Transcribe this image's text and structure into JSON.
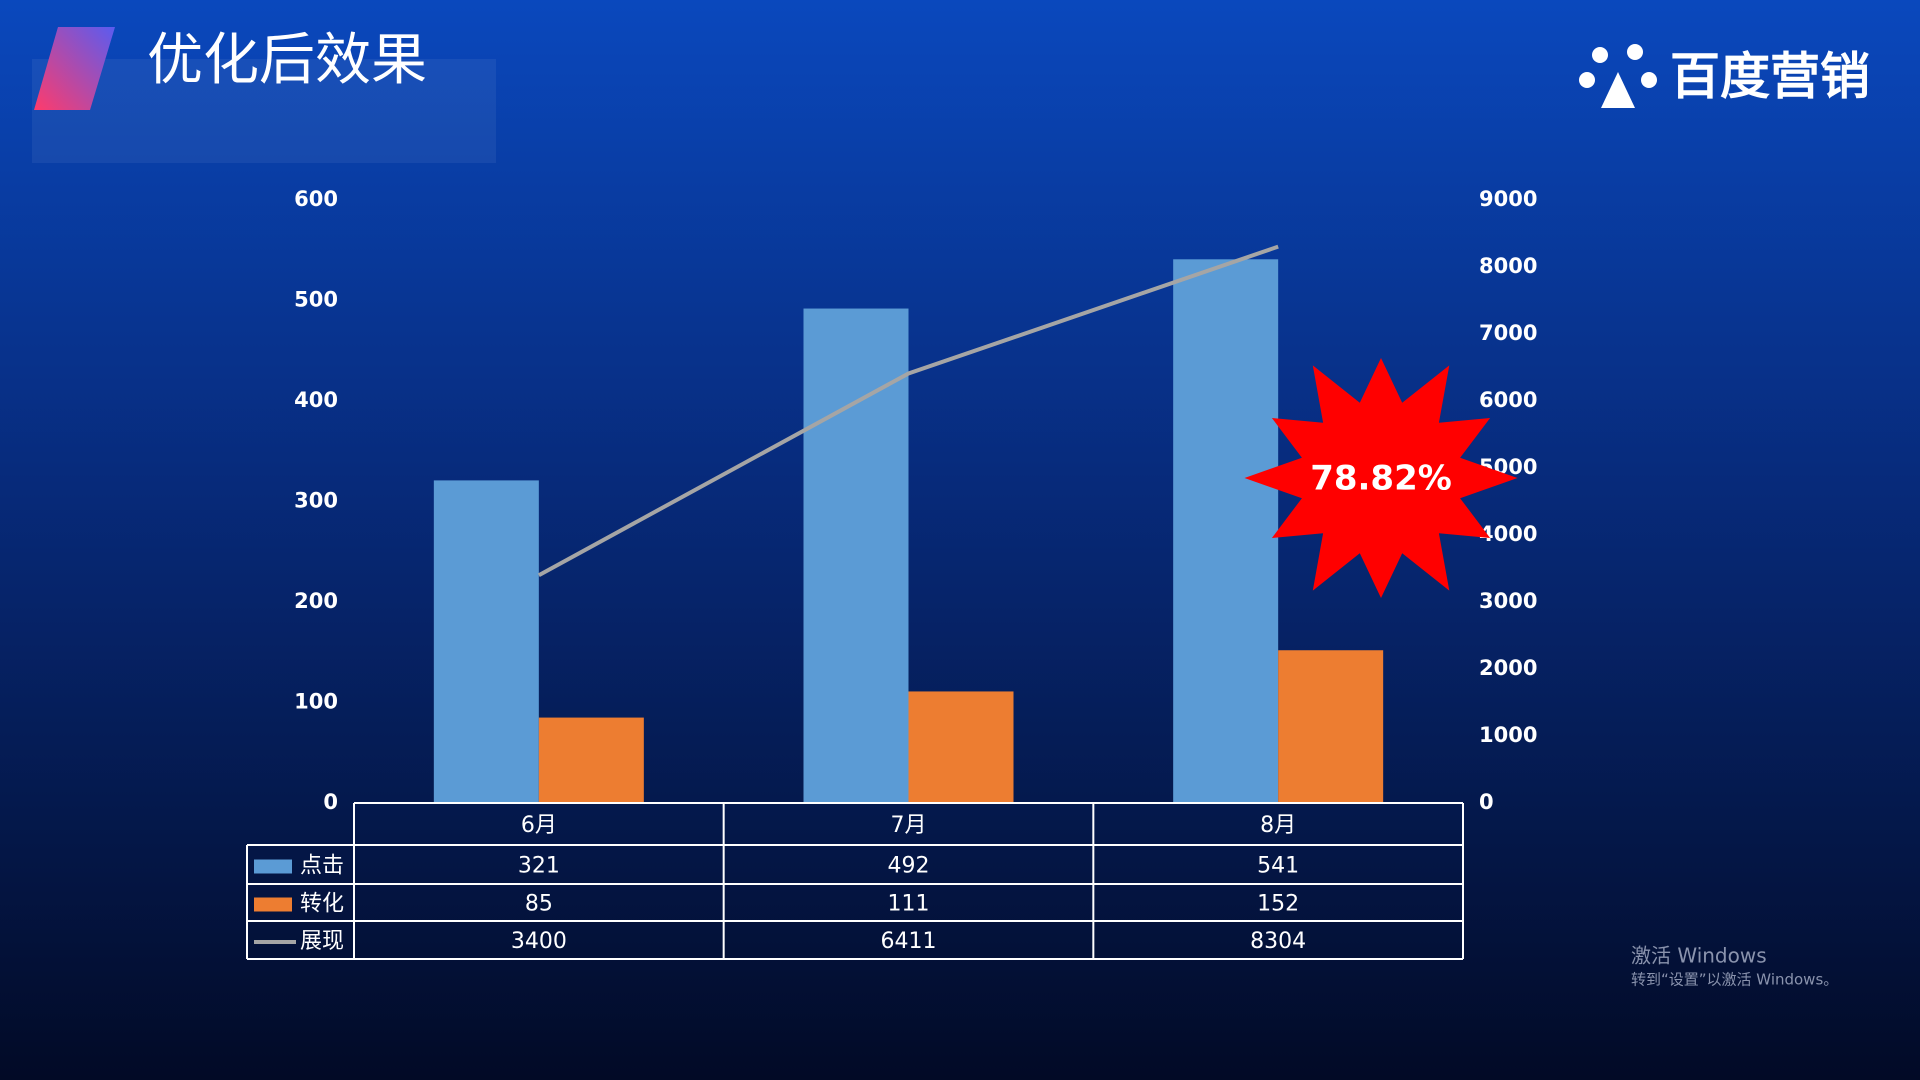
{
  "logo": "百度营销",
  "watermark": {
    "title": "激活 Windows",
    "text": "转到“设置”以激活 Windows。"
  },
  "chart_data": {
    "type": "bar",
    "title": "优化后效果",
    "categories": [
      "6月",
      "7月",
      "8月"
    ],
    "series": [
      {
        "name": "点击",
        "color": "#5b9bd5",
        "values": [
          321,
          492,
          541
        ]
      },
      {
        "name": "转化",
        "color": "#ed7d31",
        "values": [
          85,
          111,
          152
        ]
      },
      {
        "name": "展现",
        "color": "#a5a5a5",
        "type": "line",
        "axis": "y2",
        "values": [
          3400,
          6411,
          8304
        ]
      }
    ],
    "ylim": [
      0,
      600
    ],
    "yticks": [
      0,
      100,
      200,
      300,
      400,
      500,
      600
    ],
    "y2lim": [
      0,
      9000
    ],
    "y2ticks": [
      0,
      1000,
      2000,
      3000,
      4000,
      5000,
      6000,
      7000,
      8000,
      9000
    ],
    "annotation": "78.82%"
  }
}
